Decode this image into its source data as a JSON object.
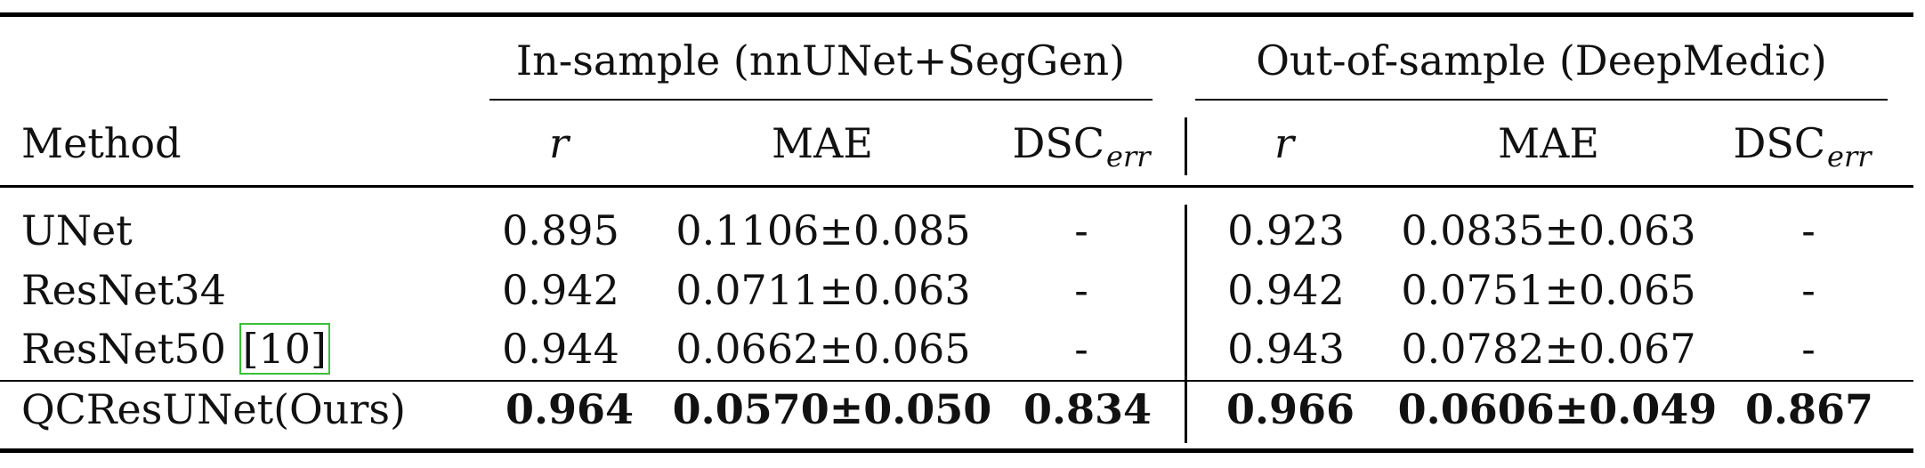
{
  "table": {
    "group_headers": {
      "in_sample": "In-sample (nnUNet+SegGen)",
      "out_of_sample": "Out-of-sample (DeepMedic)"
    },
    "columns": {
      "method": "Method",
      "r": "r",
      "mae": "MAE",
      "dsc_base": "DSC",
      "dsc_sub": "err"
    },
    "rows": [
      {
        "method": "UNet",
        "cite": "",
        "in_r": "0.895",
        "in_mae": "0.1106±0.085",
        "in_dsc": "-",
        "out_r": "0.923",
        "out_mae": "0.0835±0.063",
        "out_dsc": "-"
      },
      {
        "method": "ResNet34",
        "cite": "",
        "in_r": "0.942",
        "in_mae": "0.0711±0.063",
        "in_dsc": "-",
        "out_r": "0.942",
        "out_mae": "0.0751±0.065",
        "out_dsc": "-"
      },
      {
        "method": "ResNet50 ",
        "cite": "[10]",
        "in_r": "0.944",
        "in_mae": "0.0662±0.065",
        "in_dsc": "-",
        "out_r": "0.943",
        "out_mae": "0.0782±0.067",
        "out_dsc": "-"
      },
      {
        "method": "QCResUNet(Ours)",
        "cite": "",
        "in_r": "0.964",
        "in_mae": "0.0570±0.050",
        "in_dsc": "0.834",
        "out_r": "0.966",
        "out_mae": "0.0606±0.049",
        "out_dsc": "0.867"
      }
    ]
  }
}
